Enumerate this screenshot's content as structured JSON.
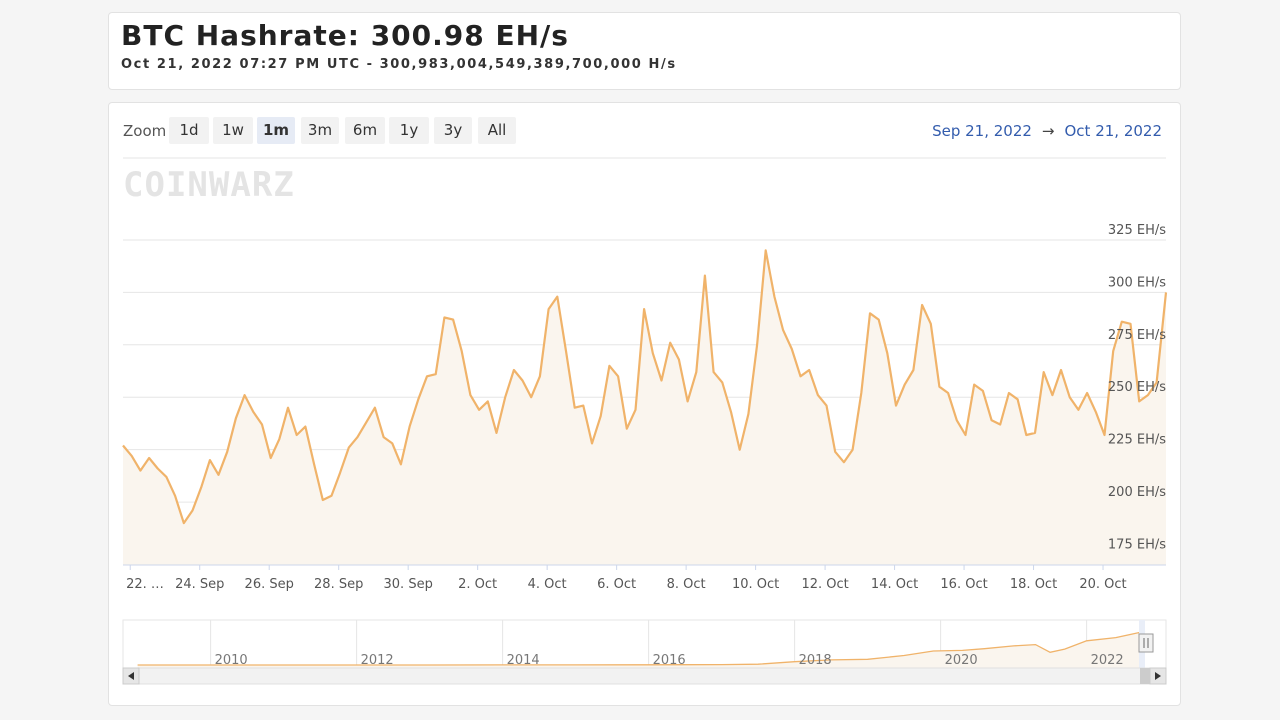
{
  "header": {
    "title": "BTC Hashrate: 300.98 EH/s",
    "timestamp": "Oct 21, 2022 07:27 PM UTC",
    "separator": "-",
    "hashrate_exact": "300,983,004,549,389,700,000 H/s"
  },
  "toolbar": {
    "zoom_label": "Zoom",
    "buttons": [
      "1d",
      "1w",
      "1m",
      "3m",
      "6m",
      "1y",
      "3y",
      "All"
    ],
    "active": "1m",
    "range_from": "Sep 21, 2022",
    "range_arrow": "→",
    "range_to": "Oct 21, 2022"
  },
  "watermark": "COINWARZ",
  "colors": {
    "line": "#f0b36a",
    "fill": "#faf5ee",
    "navigator_mask": "#e9eef8"
  },
  "chart_data": {
    "type": "area",
    "title": "BTC Hashrate",
    "xlabel": "",
    "ylabel": "",
    "y_unit": "EH/s",
    "ylim": [
      170,
      345
    ],
    "y_ticks": [
      175,
      200,
      225,
      250,
      275,
      300,
      325
    ],
    "y_tick_labels": [
      "175 EH/s",
      "200 EH/s",
      "225 EH/s",
      "250 EH/s",
      "275 EH/s",
      "300 EH/s",
      "325 EH/s"
    ],
    "x_range": [
      "2022-09-21 19:00",
      "2022-10-21 19:30"
    ],
    "x_ticks": [
      "2022-09-22",
      "2022-09-24",
      "2022-09-26",
      "2022-09-28",
      "2022-09-30",
      "2022-10-02",
      "2022-10-04",
      "2022-10-06",
      "2022-10-08",
      "2022-10-10",
      "2022-10-12",
      "2022-10-14",
      "2022-10-16",
      "2022-10-18",
      "2022-10-20"
    ],
    "x_tick_labels": [
      "22. …",
      "24. Sep",
      "26. Sep",
      "28. Sep",
      "30. Sep",
      "2. Oct",
      "4. Oct",
      "6. Oct",
      "8. Oct",
      "10. Oct",
      "12. Oct",
      "14. Oct",
      "16. Oct",
      "18. Oct",
      "20. Oct"
    ],
    "grid": true,
    "legend": "none",
    "series": [
      {
        "x": [
          "2022-09-21 19:00",
          "2022-09-22 01:00",
          "2022-09-22 07:00",
          "2022-09-22 13:00",
          "2022-09-22 19:00",
          "2022-09-23 01:00",
          "2022-09-23 07:00",
          "2022-09-23 13:00",
          "2022-09-23 19:00",
          "2022-09-24 01:00",
          "2022-09-24 07:00",
          "2022-09-24 13:00",
          "2022-09-24 19:00",
          "2022-09-25 01:00",
          "2022-09-25 07:00",
          "2022-09-25 13:00",
          "2022-09-25 19:00",
          "2022-09-26 01:00",
          "2022-09-26 07:00",
          "2022-09-26 13:00",
          "2022-09-26 19:00",
          "2022-09-27 01:00",
          "2022-09-27 07:00",
          "2022-09-27 13:00",
          "2022-09-27 19:00",
          "2022-09-28 01:00",
          "2022-09-28 07:00",
          "2022-09-28 13:00",
          "2022-09-28 19:00",
          "2022-09-29 01:00",
          "2022-09-29 07:00",
          "2022-09-29 13:00",
          "2022-09-29 19:00",
          "2022-09-30 01:00",
          "2022-09-30 07:00",
          "2022-09-30 13:00",
          "2022-09-30 19:00",
          "2022-10-01 01:00",
          "2022-10-01 07:00",
          "2022-10-01 13:00",
          "2022-10-01 19:00",
          "2022-10-02 01:00",
          "2022-10-02 07:00",
          "2022-10-02 13:00",
          "2022-10-02 19:00",
          "2022-10-03 01:00",
          "2022-10-03 07:00",
          "2022-10-03 13:00",
          "2022-10-03 19:00",
          "2022-10-04 01:00",
          "2022-10-04 07:00",
          "2022-10-04 13:00",
          "2022-10-04 19:00",
          "2022-10-05 01:00",
          "2022-10-05 07:00",
          "2022-10-05 13:00",
          "2022-10-05 19:00",
          "2022-10-06 01:00",
          "2022-10-06 07:00",
          "2022-10-06 13:00",
          "2022-10-06 19:00",
          "2022-10-07 01:00",
          "2022-10-07 07:00",
          "2022-10-07 13:00",
          "2022-10-07 19:00",
          "2022-10-08 01:00",
          "2022-10-08 07:00",
          "2022-10-08 13:00",
          "2022-10-08 19:00",
          "2022-10-09 01:00",
          "2022-10-09 07:00",
          "2022-10-09 13:00",
          "2022-10-09 19:00",
          "2022-10-10 01:00",
          "2022-10-10 07:00",
          "2022-10-10 13:00",
          "2022-10-10 19:00",
          "2022-10-11 01:00",
          "2022-10-11 07:00",
          "2022-10-11 13:00",
          "2022-10-11 19:00",
          "2022-10-12 01:00",
          "2022-10-12 07:00",
          "2022-10-12 13:00",
          "2022-10-12 19:00",
          "2022-10-13 01:00",
          "2022-10-13 07:00",
          "2022-10-13 13:00",
          "2022-10-13 19:00",
          "2022-10-14 01:00",
          "2022-10-14 07:00",
          "2022-10-14 13:00",
          "2022-10-14 19:00",
          "2022-10-15 01:00",
          "2022-10-15 07:00",
          "2022-10-15 13:00",
          "2022-10-15 19:00",
          "2022-10-16 01:00",
          "2022-10-16 07:00",
          "2022-10-16 13:00",
          "2022-10-16 19:00",
          "2022-10-17 01:00",
          "2022-10-17 07:00",
          "2022-10-17 13:00",
          "2022-10-17 19:00",
          "2022-10-18 01:00",
          "2022-10-18 07:00",
          "2022-10-18 13:00",
          "2022-10-18 19:00",
          "2022-10-19 01:00",
          "2022-10-19 07:00",
          "2022-10-19 13:00",
          "2022-10-19 19:00",
          "2022-10-20 01:00",
          "2022-10-20 07:00",
          "2022-10-20 13:00",
          "2022-10-20 19:00",
          "2022-10-21 01:00",
          "2022-10-21 07:00",
          "2022-10-21 13:00",
          "2022-10-21 19:30"
        ],
        "values": [
          227,
          222,
          215,
          221,
          216,
          212,
          203,
          190,
          196,
          207,
          220,
          213,
          224,
          240,
          251,
          243,
          237,
          221,
          230,
          245,
          232,
          236,
          218,
          201,
          203,
          214,
          226,
          231,
          238,
          245,
          231,
          228,
          218,
          236,
          249,
          260,
          261,
          288,
          287,
          272,
          251,
          244,
          248,
          233,
          250,
          263,
          258,
          250,
          260,
          292,
          298,
          272,
          245,
          246,
          228,
          241,
          265,
          260,
          235,
          244,
          292,
          271,
          258,
          276,
          268,
          248,
          262,
          308,
          262,
          257,
          243,
          225,
          242,
          275,
          320,
          298,
          282,
          273,
          260,
          263,
          251,
          246,
          224,
          219,
          225,
          252,
          290,
          287,
          271,
          246,
          256,
          263,
          294,
          285,
          255,
          252,
          239,
          232,
          256,
          253,
          239,
          237,
          252,
          249,
          232,
          233,
          262,
          251,
          263,
          250,
          244,
          252,
          243,
          232,
          272,
          286,
          285,
          248,
          251,
          257,
          300
        ]
      }
    ],
    "navigator": {
      "x_tick_labels": [
        "2010",
        "2012",
        "2014",
        "2016",
        "2018",
        "2020",
        "2022"
      ],
      "series": {
        "x": [
          2009.0,
          2010.0,
          2011.0,
          2012.0,
          2013.0,
          2014.0,
          2015.0,
          2016.0,
          2016.5,
          2017.0,
          2017.5,
          2018.0,
          2018.5,
          2019.0,
          2019.5,
          2019.9,
          2020.3,
          2020.6,
          2021.0,
          2021.3,
          2021.5,
          2021.7,
          2022.0,
          2022.4,
          2022.8
        ],
        "values": [
          0,
          0,
          0,
          0,
          0,
          0.5,
          0.7,
          1.5,
          2,
          3.5,
          6,
          26,
          40,
          45,
          75,
          110,
          115,
          128,
          150,
          160,
          100,
          125,
          190,
          215,
          265
        ]
      }
    }
  }
}
